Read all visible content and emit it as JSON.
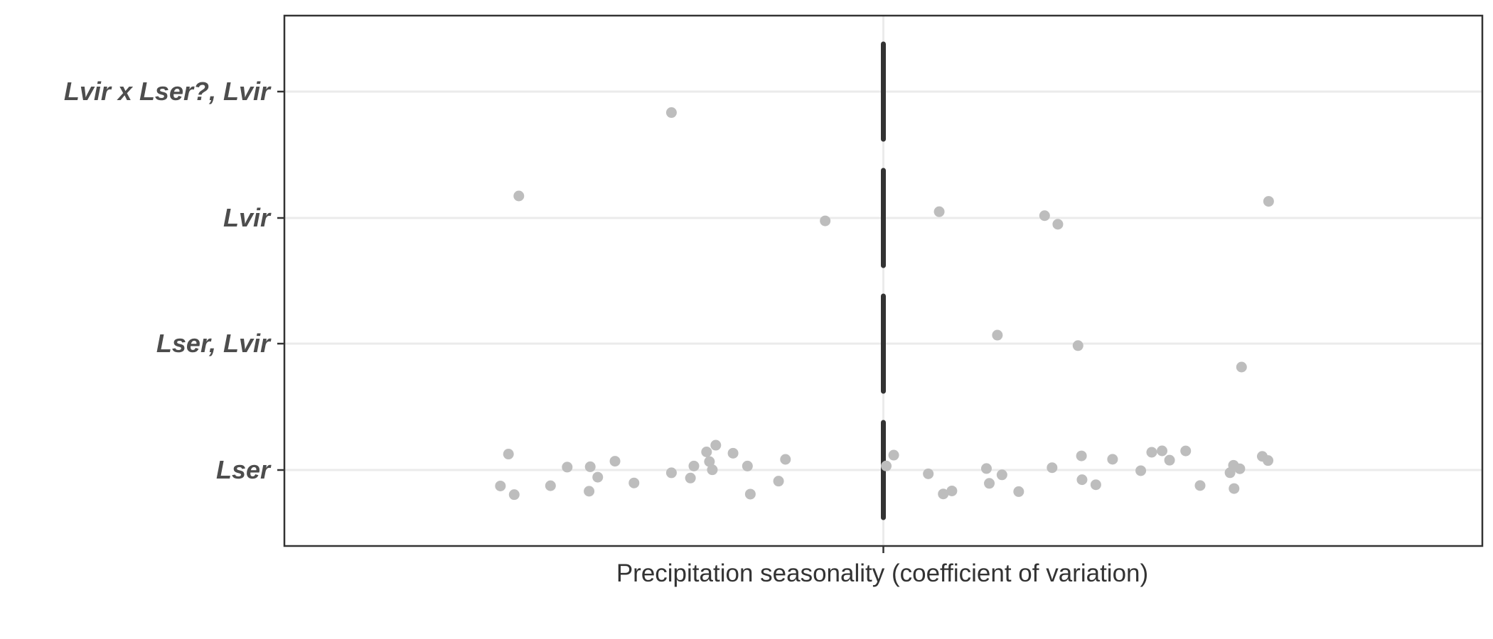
{
  "chart_data": {
    "type": "scatter",
    "title": "",
    "xlabel": "Precipitation seasonality (coefficient of variation)",
    "ylabel": "",
    "categories": [
      "Lser",
      "Lser, Lvir",
      "Lvir",
      "Lvir x Lser?, Lvir"
    ],
    "reference_line": "vertical at center",
    "grid": "horizontal major lines only",
    "colors": {
      "points": "#bdbdbd",
      "reference_line": "#333333",
      "grid": "#ebebeb",
      "frame": "#333333"
    },
    "points": [
      {
        "category": "Lvir x Lser?, Lvir",
        "xs": [
          -0.368
        ]
      },
      {
        "category": "Lvir",
        "xs": [
          -0.633,
          -0.101,
          0.097,
          0.28,
          0.303,
          0.669
        ]
      },
      {
        "category": "Lser, Lvir",
        "xs": [
          0.198,
          0.338,
          0.622
        ]
      },
      {
        "category": "Lser",
        "xs": [
          -0.665,
          -0.651,
          -0.641,
          -0.578,
          -0.549,
          -0.511,
          -0.509,
          -0.496,
          -0.466,
          -0.433,
          -0.368,
          -0.335,
          -0.329,
          -0.307,
          -0.302,
          -0.297,
          -0.291,
          -0.261,
          -0.236,
          -0.231,
          -0.182,
          -0.17,
          0.005,
          0.018,
          0.078,
          0.104,
          0.119,
          0.179,
          0.184,
          0.206,
          0.235,
          0.293,
          0.344,
          0.345,
          0.369,
          0.398,
          0.447,
          0.466,
          0.484,
          0.497,
          0.525,
          0.55,
          0.602,
          0.608,
          0.609,
          0.619,
          0.658,
          0.668
        ]
      }
    ]
  }
}
